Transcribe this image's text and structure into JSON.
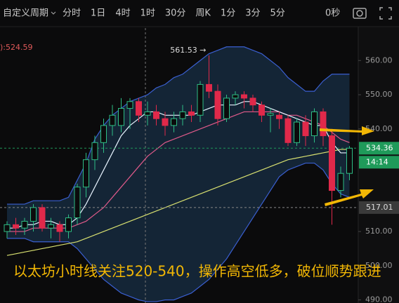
{
  "toolbar": {
    "items": [
      "自定义周期",
      "分时",
      "1日",
      "4时",
      "1时",
      "30分",
      "周K",
      "1分",
      "3分",
      "5分"
    ],
    "selected": 4,
    "timer": "0秒"
  },
  "chart_data": {
    "type": "candlestick",
    "legend_text": "):524.59",
    "high_label": "561.53 →",
    "annotation": "以太坊小时线关注520-540，操作高空低多，破位顺势跟进",
    "ylim": [
      489.1,
      569.9
    ],
    "yticks": [
      {
        "value": 490,
        "label": "490.00"
      },
      {
        "value": 500,
        "label": "500.00"
      },
      {
        "value": 510,
        "label": "510.00"
      },
      {
        "value": 540,
        "label": "540.00"
      },
      {
        "value": 550,
        "label": "550.00"
      },
      {
        "value": 560,
        "label": "560.00"
      }
    ],
    "up_color": "#2ebd85",
    "down_color": "#e0294a",
    "open": [
      510,
      512,
      511,
      513,
      517,
      511,
      512,
      510,
      514,
      523,
      531,
      536,
      541,
      541,
      546,
      548,
      544,
      545,
      543,
      541,
      543,
      545,
      544,
      553,
      551,
      543,
      549,
      550,
      549,
      547,
      544,
      544,
      543,
      536,
      542,
      538,
      545,
      538,
      522,
      527
    ],
    "high": [
      513,
      514,
      514,
      518,
      518,
      514,
      513,
      515,
      524,
      533,
      538,
      543,
      547,
      549,
      549,
      549,
      548,
      547,
      545,
      545,
      547,
      547,
      554,
      561.53,
      553,
      550,
      551,
      551,
      550,
      548,
      546,
      545,
      544,
      543,
      544,
      546,
      546,
      540,
      529,
      535
    ],
    "low": [
      508,
      509,
      509,
      510,
      510,
      508,
      507,
      508,
      512,
      520,
      528,
      533,
      538,
      539,
      540,
      542,
      541,
      541,
      538,
      539,
      541,
      542,
      542,
      549,
      541,
      542,
      547,
      546,
      545,
      542,
      539,
      540,
      535,
      535,
      535,
      536,
      535,
      512,
      520,
      525
    ],
    "close": [
      512,
      511,
      513,
      517,
      511,
      512,
      510,
      514,
      523,
      531,
      536,
      541,
      544,
      546,
      548,
      544,
      545,
      543,
      541,
      543,
      545,
      544,
      553,
      551,
      543,
      549,
      550,
      549,
      547,
      544,
      544.5,
      543,
      536,
      542,
      538,
      545,
      538,
      522,
      527,
      534.36
    ],
    "overlays": [
      {
        "color": "#3a5fd0",
        "values": [
          518,
          518,
          518,
          519,
          519,
          519,
          519,
          520,
          525,
          530,
          537,
          541,
          544,
          546,
          548,
          549,
          550,
          552,
          553,
          555,
          556,
          558,
          560,
          562,
          563,
          564,
          564,
          564,
          563,
          562,
          560,
          558,
          555,
          553,
          551,
          551,
          554,
          556,
          556,
          556
        ]
      },
      {
        "color": "#3a5fd0",
        "values": [
          508,
          508,
          508,
          507,
          507,
          507,
          507,
          507,
          505,
          502,
          499,
          496,
          494,
          492,
          491,
          490,
          489.5,
          489.5,
          490,
          490,
          491,
          492,
          494,
          496,
          499,
          502,
          506,
          510,
          514,
          518,
          522,
          526,
          528,
          529,
          530,
          530,
          528,
          524,
          521,
          520
        ]
      },
      {
        "color": "#d8e070",
        "values": [
          503,
          503.5,
          504,
          504.5,
          505,
          505.5,
          506,
          506.5,
          507,
          508,
          509,
          510,
          511,
          512,
          513,
          514,
          515,
          516,
          517,
          518,
          519,
          520,
          521,
          522,
          523,
          524,
          525,
          526,
          527,
          528,
          529,
          530,
          531,
          531.5,
          532,
          532.5,
          533,
          533.5,
          534,
          534
        ]
      },
      {
        "color": "#e05a8a",
        "values": [
          510,
          510,
          510,
          511,
          511,
          511,
          511,
          511,
          512,
          513,
          515,
          517,
          520,
          523,
          526,
          529,
          532,
          534,
          536,
          537,
          538,
          539,
          540,
          541,
          542,
          543,
          544,
          545,
          545,
          545,
          545,
          545,
          544,
          544,
          543,
          542,
          541,
          539,
          537,
          536
        ]
      },
      {
        "color": "#e8f4ff",
        "values": [
          511,
          511,
          512,
          512,
          513,
          513,
          512,
          512,
          514,
          518,
          523,
          528,
          533,
          538,
          541,
          543,
          545,
          545,
          544,
          544,
          544,
          544,
          545,
          546,
          547,
          547,
          547,
          548,
          548,
          547,
          546,
          545,
          544,
          543,
          542,
          541,
          541,
          536,
          533,
          533
        ]
      }
    ],
    "band_fill": "#142536",
    "last_price": 534.36,
    "countdown": "14:14",
    "line_price": 517.01,
    "last_color": "#1f9a5a",
    "line_color": "#3a3a3a"
  }
}
